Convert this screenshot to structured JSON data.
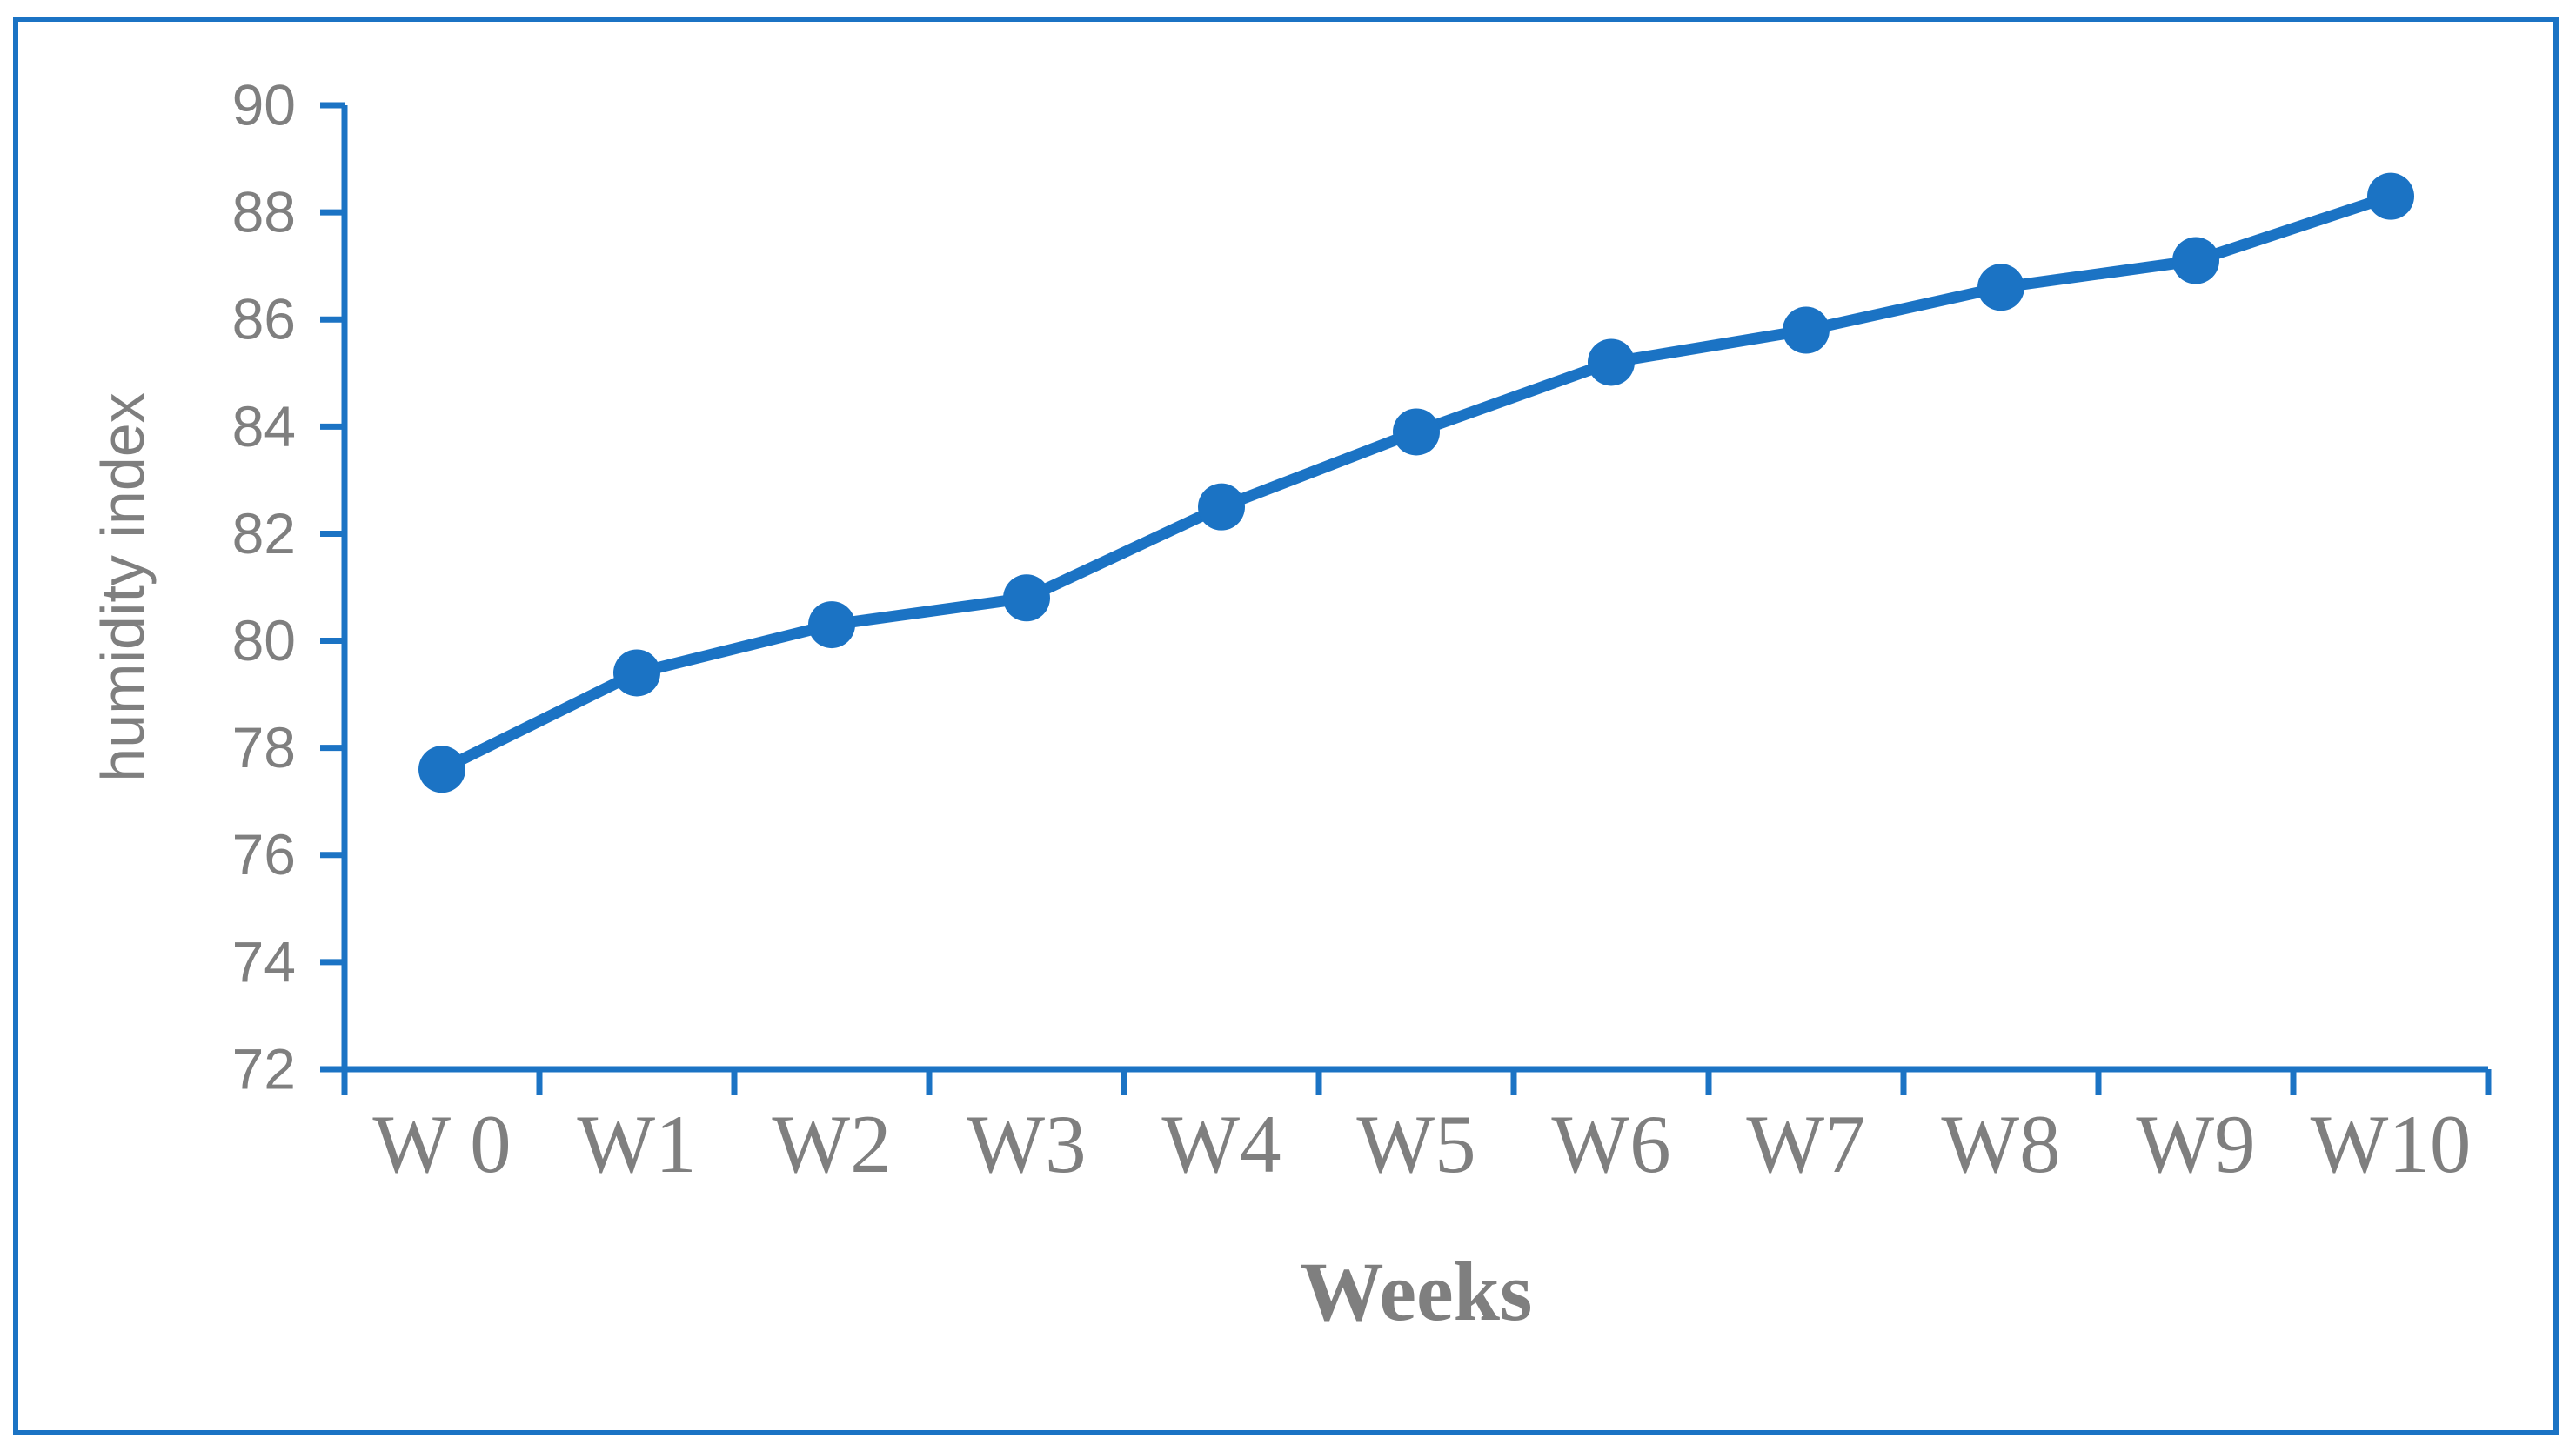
{
  "chart_data": {
    "type": "line",
    "title": "",
    "xlabel": "Weeks",
    "ylabel": "humidity index",
    "categories": [
      "W 0",
      "W1",
      "W2",
      "W3",
      "W4",
      "W5",
      "W6",
      "W7",
      "W8",
      "W9",
      "W10"
    ],
    "series": [
      {
        "name": "humidity index",
        "values": [
          77.6,
          79.4,
          80.3,
          80.8,
          82.5,
          83.9,
          85.2,
          85.8,
          86.6,
          87.1,
          88.3
        ]
      }
    ],
    "ylim": [
      72,
      90
    ],
    "yticks": [
      72,
      74,
      76,
      78,
      80,
      82,
      84,
      86,
      88,
      90
    ],
    "grid": false,
    "legend_position": "none",
    "line_color": "#1B73C4",
    "axis_color": "#1B73C4",
    "border_color": "#1B73C4",
    "tick_label_color": "#7f7f7f",
    "axis_title_color": "#7f7f7f",
    "marker": "circle"
  }
}
